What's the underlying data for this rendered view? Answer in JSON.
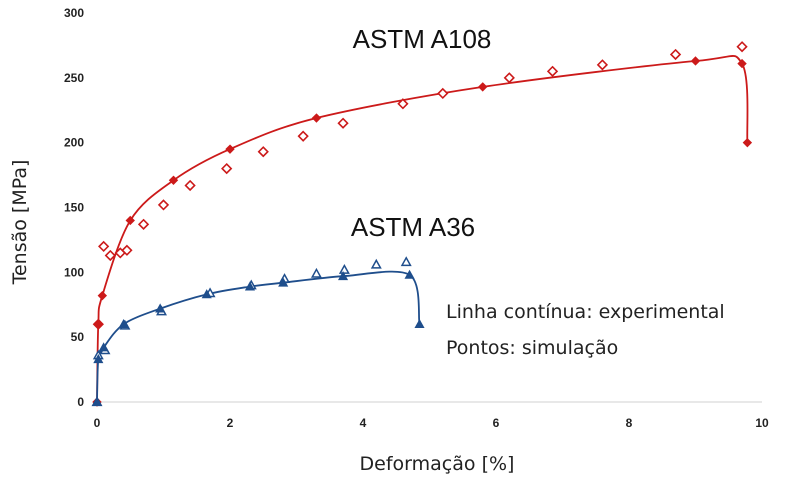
{
  "chart_data": {
    "type": "line",
    "xlabel": "Deformação [%]",
    "ylabel": "Tensão [MPa]",
    "xlim": [
      0,
      10
    ],
    "ylim": [
      0,
      300
    ],
    "xticks": [
      "0",
      "2",
      "4",
      "6",
      "8",
      "10"
    ],
    "yticks": [
      "0",
      "50",
      "100",
      "150",
      "200",
      "250",
      "300"
    ],
    "grid": false,
    "annotations": [
      "Linha contínua: experimental",
      "Pontos: simulação"
    ],
    "series": [
      {
        "name": "ASTM A108",
        "color": "#cc1a1a",
        "experimental": {
          "marker": "filled-diamond",
          "x": [
            0.0,
            0.02,
            0.08,
            0.5,
            1.15,
            2.0,
            3.3,
            5.8,
            9.0,
            9.7,
            9.78
          ],
          "y": [
            0,
            60,
            82,
            140,
            171,
            195,
            219,
            243,
            263,
            261,
            200
          ]
        },
        "simulation": {
          "marker": "hollow-diamond",
          "x": [
            0.02,
            0.1,
            0.2,
            0.35,
            0.45,
            0.7,
            1.0,
            1.4,
            1.95,
            2.5,
            3.1,
            3.7,
            4.6,
            5.2,
            6.2,
            6.85,
            7.6,
            8.7,
            9.7
          ],
          "y": [
            60,
            120,
            113,
            115,
            117,
            137,
            152,
            167,
            180,
            193,
            205,
            215,
            230,
            238,
            250,
            255,
            260,
            268,
            274
          ]
        }
      },
      {
        "name": "ASTM A36",
        "color": "#1f4e8c",
        "experimental": {
          "marker": "filled-triangle",
          "x": [
            0.0,
            0.02,
            0.1,
            0.4,
            0.95,
            1.65,
            2.3,
            2.8,
            3.7,
            4.7,
            4.85
          ],
          "y": [
            0,
            33,
            42,
            60,
            72,
            83,
            89,
            92,
            97,
            98,
            60
          ]
        },
        "simulation": {
          "marker": "hollow-triangle",
          "x": [
            0.0,
            0.02,
            0.12,
            0.42,
            0.97,
            1.7,
            2.32,
            2.82,
            3.3,
            3.72,
            4.2,
            4.65
          ],
          "y": [
            0,
            36,
            40,
            59,
            70,
            84,
            90,
            95,
            99,
            102,
            106,
            108
          ]
        }
      }
    ]
  }
}
